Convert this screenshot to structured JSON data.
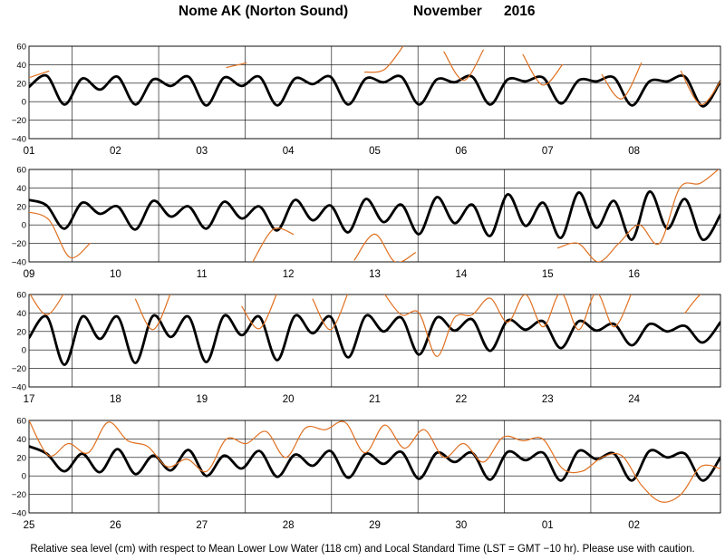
{
  "title": {
    "station": "Nome AK (Norton Sound)",
    "month": "November",
    "year": "2016"
  },
  "footer": "Relative sea level (cm) with respect to Mean Lower Low Water (118 cm) and Local Standard Time (LST = GMT −10 hr). Please use with caution.",
  "colors": {
    "predicted": "#000000",
    "observed": "#e07020",
    "grid": "#000000"
  },
  "chart_data": [
    {
      "type": "line",
      "ylim": [
        -40,
        60
      ],
      "yticks": [
        "60",
        "40",
        "20",
        "0",
        "−20",
        "−40"
      ],
      "days": [
        "01",
        "02",
        "03",
        "04",
        "05",
        "06",
        "07",
        "08"
      ],
      "series": [
        {
          "values": [
            16,
            28,
            -3,
            25,
            13,
            27,
            -3,
            24,
            17,
            27,
            -4,
            26,
            17,
            27,
            -4,
            25,
            19,
            27,
            -3,
            25,
            21,
            27,
            -3,
            24,
            21,
            27,
            -3,
            24,
            22,
            26,
            -2,
            23,
            22,
            26,
            -4,
            22,
            22,
            27,
            -5,
            22
          ]
        },
        {
          "values": [
            26,
            33,
            null,
            null,
            null,
            null,
            null,
            null,
            null,
            null,
            37,
            42,
            null,
            null,
            null,
            null,
            null,
            32,
            35,
            62,
            null,
            54,
            23,
            56,
            null,
            51,
            18,
            40,
            null,
            29,
            3,
            42,
            null,
            33,
            -3,
            22
          ]
        }
      ]
    },
    {
      "type": "line",
      "ylim": [
        -40,
        60
      ],
      "yticks": [
        "60",
        "40",
        "20",
        "0",
        "−20",
        "−40"
      ],
      "days": [
        "09",
        "10",
        "11",
        "12",
        "13",
        "14",
        "15",
        "16"
      ],
      "series": [
        {
          "values": [
            27,
            21,
            -4,
            24,
            12,
            20,
            -5,
            26,
            9,
            20,
            -4,
            25,
            7,
            20,
            -6,
            27,
            5,
            21,
            -8,
            28,
            3,
            22,
            -10,
            30,
            2,
            22,
            -12,
            33,
            -1,
            24,
            -14,
            35,
            -3,
            26,
            -16,
            36,
            -4,
            28,
            -16,
            11
          ]
        },
        {
          "values": [
            14,
            5,
            -35,
            -20,
            null,
            null,
            null,
            null,
            null,
            null,
            null,
            -40,
            -5,
            -10,
            null,
            null,
            -38,
            -10,
            -40,
            -30,
            null,
            null,
            null,
            null,
            null,
            null,
            -25,
            -20,
            -40,
            -20,
            0,
            -20,
            40,
            45,
            62
          ]
        }
      ]
    },
    {
      "type": "line",
      "ylim": [
        -40,
        60
      ],
      "yticks": [
        "60",
        "40",
        "20",
        "0",
        "−20",
        "−40"
      ],
      "days": [
        "17",
        "18",
        "19",
        "20",
        "21",
        "22",
        "23",
        "24"
      ],
      "series": [
        {
          "values": [
            13,
            36,
            -16,
            36,
            12,
            36,
            -14,
            37,
            14,
            36,
            -13,
            37,
            16,
            36,
            -11,
            37,
            18,
            36,
            -8,
            37,
            20,
            35,
            -5,
            35,
            21,
            33,
            -1,
            32,
            22,
            31,
            2,
            31,
            21,
            28,
            5,
            28,
            20,
            26,
            8,
            30
          ]
        },
        {
          "values": [
            62,
            38,
            62,
            null,
            null,
            null,
            55,
            22,
            62,
            null,
            62,
            null,
            47,
            23,
            62,
            null,
            55,
            22,
            62,
            null,
            62,
            38,
            40,
            -7,
            35,
            38,
            56,
            30,
            60,
            25,
            62,
            22,
            62,
            25,
            62,
            null,
            null,
            40,
            62,
            62
          ]
        }
      ]
    },
    {
      "type": "line",
      "ylim": [
        -40,
        60
      ],
      "yticks": [
        "60",
        "40",
        "20",
        "0",
        "−20",
        "−40"
      ],
      "days": [
        "25",
        "26",
        "27",
        "28",
        "29",
        "30",
        "01",
        "02"
      ],
      "series": [
        {
          "values": [
            32,
            24,
            5,
            24,
            4,
            29,
            2,
            22,
            6,
            28,
            0,
            22,
            8,
            27,
            -1,
            23,
            11,
            27,
            -2,
            24,
            13,
            26,
            -3,
            25,
            15,
            25,
            -4,
            26,
            17,
            25,
            -5,
            27,
            18,
            24,
            -5,
            27,
            20,
            24,
            -5,
            20
          ]
        },
        {
          "values": [
            60,
            22,
            35,
            25,
            58,
            38,
            32,
            10,
            18,
            5,
            40,
            35,
            48,
            20,
            52,
            50,
            58,
            25,
            55,
            30,
            50,
            20,
            35,
            15,
            42,
            38,
            40,
            8,
            5,
            20,
            22,
            -10,
            -28,
            -20,
            10,
            8
          ]
        }
      ]
    }
  ]
}
